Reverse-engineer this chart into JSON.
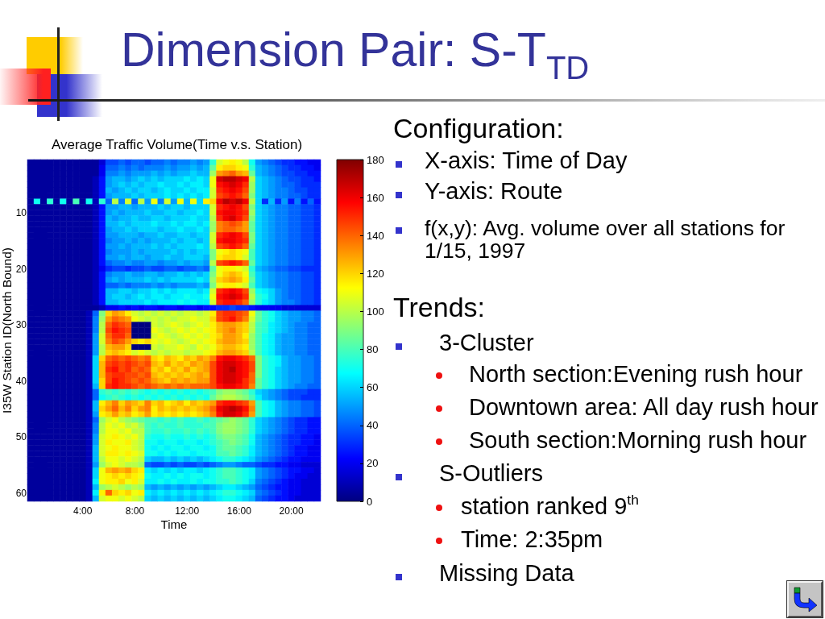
{
  "chart_data": {
    "type": "heatmap",
    "title": "Dimension Pair: S-T$_{TD}$",
    "subtitle": "Average Traffic Volume(Time v.s. Station)",
    "xlabel": "Time",
    "ylabel": "I35W Station ID(North Bound)",
    "categories": [
      null,
      null,
      null,
      null,
      null,
      null,
      null,
      null,
      "4:00",
      null,
      null,
      null,
      null,
      null,
      null,
      null,
      "8:00",
      null,
      null,
      null,
      null,
      null,
      null,
      null,
      "12:00",
      null,
      null,
      null,
      null,
      null,
      null,
      null,
      "16:00",
      null,
      null,
      null,
      null,
      null,
      null,
      null,
      "20:00",
      null,
      null,
      null,
      null
    ],
    "y_categories": [
      null,
      null,
      null,
      null,
      null,
      null,
      null,
      null,
      null,
      "10",
      null,
      null,
      null,
      null,
      null,
      null,
      null,
      null,
      null,
      "20",
      null,
      null,
      null,
      null,
      null,
      null,
      null,
      null,
      null,
      "30",
      null,
      null,
      null,
      null,
      null,
      null,
      null,
      null,
      null,
      "40",
      null,
      null,
      null,
      null,
      null,
      null,
      null,
      null,
      null,
      "50",
      null,
      null,
      null,
      null,
      null,
      null,
      null,
      null,
      null,
      "60",
      null
    ],
    "clim": [
      0,
      180
    ],
    "cticks": [
      0,
      20,
      40,
      60,
      80,
      100,
      120,
      140,
      160,
      180
    ],
    "cells": [
      [
        5,
        5,
        5,
        5,
        5,
        5,
        5,
        5,
        5,
        5,
        5,
        15,
        35,
        35,
        40,
        35,
        40,
        40,
        35,
        40,
        40,
        45,
        40,
        45,
        45,
        50,
        45,
        50,
        75,
        105,
        110,
        115,
        110,
        100,
        70,
        50,
        45,
        40,
        35,
        30,
        30,
        25,
        25,
        20,
        20
      ],
      [
        5,
        5,
        5,
        5,
        5,
        5,
        5,
        5,
        5,
        5,
        5,
        20,
        40,
        40,
        45,
        40,
        45,
        40,
        45,
        45,
        45,
        50,
        45,
        50,
        50,
        55,
        50,
        55,
        85,
        115,
        120,
        120,
        115,
        110,
        75,
        55,
        50,
        45,
        40,
        35,
        30,
        30,
        25,
        25,
        20
      ],
      [
        5,
        5,
        5,
        5,
        5,
        5,
        5,
        5,
        5,
        5,
        5,
        20,
        45,
        45,
        50,
        45,
        50,
        50,
        50,
        55,
        50,
        55,
        50,
        55,
        55,
        60,
        55,
        55,
        95,
        130,
        135,
        140,
        130,
        125,
        85,
        55,
        50,
        45,
        40,
        35,
        35,
        30,
        30,
        25,
        25
      ],
      [
        5,
        5,
        5,
        5,
        5,
        5,
        5,
        5,
        5,
        5,
        10,
        25,
        50,
        55,
        55,
        50,
        55,
        60,
        55,
        60,
        55,
        60,
        60,
        60,
        65,
        60,
        65,
        60,
        110,
        165,
        170,
        170,
        165,
        160,
        100,
        60,
        55,
        50,
        45,
        40,
        35,
        35,
        30,
        30,
        25
      ],
      [
        5,
        5,
        5,
        5,
        5,
        5,
        5,
        5,
        5,
        5,
        10,
        25,
        50,
        55,
        60,
        55,
        60,
        55,
        60,
        60,
        65,
        60,
        60,
        65,
        60,
        65,
        65,
        60,
        110,
        155,
        160,
        165,
        160,
        150,
        95,
        60,
        55,
        50,
        45,
        40,
        40,
        35,
        30,
        30,
        30
      ],
      [
        5,
        5,
        5,
        5,
        5,
        5,
        5,
        5,
        5,
        5,
        10,
        25,
        55,
        50,
        55,
        60,
        55,
        60,
        60,
        55,
        60,
        65,
        60,
        60,
        65,
        60,
        65,
        65,
        105,
        150,
        155,
        160,
        155,
        145,
        95,
        60,
        55,
        50,
        45,
        45,
        40,
        35,
        35,
        30,
        30
      ],
      [
        5,
        5,
        5,
        5,
        5,
        5,
        5,
        5,
        5,
        5,
        10,
        25,
        50,
        55,
        55,
        55,
        60,
        55,
        60,
        60,
        60,
        65,
        60,
        65,
        60,
        65,
        60,
        65,
        105,
        145,
        150,
        155,
        150,
        140,
        90,
        60,
        55,
        50,
        45,
        45,
        40,
        40,
        35,
        30,
        30
      ],
      [
        5,
        70,
        5,
        75,
        5,
        70,
        5,
        80,
        5,
        70,
        10,
        75,
        40,
        100,
        45,
        105,
        40,
        100,
        50,
        110,
        45,
        105,
        50,
        110,
        55,
        110,
        60,
        115,
        120,
        160,
        170,
        165,
        170,
        160,
        100,
        60,
        30,
        55,
        30,
        50,
        25,
        45,
        25,
        40,
        25
      ],
      [
        5,
        5,
        5,
        5,
        5,
        5,
        5,
        5,
        5,
        5,
        10,
        25,
        50,
        50,
        55,
        55,
        50,
        55,
        55,
        55,
        60,
        55,
        60,
        60,
        55,
        60,
        60,
        60,
        105,
        150,
        155,
        160,
        155,
        145,
        90,
        60,
        55,
        50,
        45,
        45,
        40,
        40,
        35,
        35,
        30
      ],
      [
        5,
        5,
        5,
        5,
        5,
        5,
        5,
        5,
        5,
        5,
        10,
        25,
        50,
        55,
        50,
        55,
        55,
        55,
        60,
        55,
        55,
        60,
        60,
        55,
        60,
        60,
        65,
        60,
        105,
        155,
        160,
        160,
        155,
        150,
        95,
        60,
        55,
        50,
        45,
        45,
        40,
        40,
        35,
        35,
        30
      ],
      [
        5,
        5,
        5,
        5,
        5,
        5,
        5,
        5,
        5,
        5,
        10,
        25,
        55,
        50,
        55,
        55,
        60,
        55,
        55,
        60,
        60,
        55,
        60,
        60,
        60,
        65,
        60,
        60,
        100,
        150,
        160,
        165,
        155,
        145,
        90,
        60,
        55,
        50,
        45,
        45,
        40,
        40,
        35,
        35,
        30
      ],
      [
        5,
        5,
        5,
        5,
        5,
        5,
        5,
        5,
        5,
        5,
        10,
        25,
        55,
        55,
        60,
        55,
        60,
        60,
        60,
        65,
        60,
        60,
        65,
        60,
        65,
        65,
        60,
        65,
        95,
        135,
        140,
        145,
        140,
        130,
        85,
        60,
        55,
        50,
        45,
        45,
        40,
        40,
        35,
        35,
        30
      ],
      [
        5,
        5,
        5,
        5,
        5,
        5,
        5,
        5,
        5,
        5,
        10,
        25,
        50,
        55,
        55,
        60,
        55,
        60,
        60,
        60,
        55,
        60,
        60,
        65,
        60,
        60,
        65,
        60,
        95,
        135,
        140,
        140,
        135,
        130,
        85,
        60,
        55,
        50,
        45,
        45,
        40,
        40,
        35,
        35,
        30
      ],
      [
        5,
        5,
        5,
        5,
        5,
        5,
        5,
        5,
        5,
        5,
        10,
        25,
        50,
        50,
        55,
        55,
        55,
        50,
        55,
        55,
        60,
        55,
        55,
        60,
        60,
        55,
        60,
        60,
        105,
        150,
        155,
        160,
        155,
        145,
        90,
        60,
        55,
        50,
        45,
        45,
        40,
        40,
        35,
        35,
        30
      ],
      [
        5,
        5,
        5,
        5,
        5,
        5,
        5,
        5,
        5,
        5,
        10,
        25,
        45,
        50,
        50,
        55,
        50,
        55,
        50,
        55,
        55,
        55,
        60,
        55,
        60,
        60,
        55,
        60,
        105,
        155,
        160,
        160,
        155,
        150,
        90,
        60,
        55,
        50,
        45,
        45,
        40,
        40,
        35,
        35,
        30
      ],
      [
        5,
        5,
        5,
        5,
        5,
        5,
        5,
        5,
        5,
        5,
        10,
        25,
        50,
        50,
        55,
        50,
        55,
        55,
        55,
        60,
        55,
        60,
        55,
        60,
        60,
        60,
        65,
        60,
        100,
        145,
        150,
        155,
        150,
        140,
        85,
        60,
        55,
        50,
        45,
        45,
        40,
        40,
        35,
        35,
        30
      ],
      [
        5,
        5,
        5,
        5,
        5,
        5,
        5,
        5,
        5,
        5,
        10,
        25,
        45,
        50,
        50,
        50,
        55,
        50,
        55,
        55,
        55,
        55,
        60,
        55,
        60,
        55,
        60,
        60,
        90,
        110,
        115,
        120,
        115,
        110,
        80,
        60,
        55,
        50,
        45,
        45,
        40,
        40,
        35,
        35,
        30
      ],
      [
        5,
        5,
        5,
        5,
        5,
        5,
        5,
        5,
        5,
        5,
        10,
        25,
        50,
        50,
        55,
        50,
        55,
        55,
        50,
        55,
        55,
        60,
        55,
        55,
        60,
        60,
        60,
        55,
        90,
        115,
        120,
        120,
        115,
        105,
        80,
        60,
        55,
        50,
        45,
        45,
        40,
        40,
        35,
        35,
        30
      ],
      [
        5,
        5,
        5,
        5,
        5,
        5,
        5,
        5,
        5,
        5,
        10,
        25,
        40,
        45,
        45,
        50,
        45,
        45,
        50,
        50,
        45,
        50,
        50,
        55,
        50,
        55,
        55,
        50,
        100,
        145,
        150,
        155,
        150,
        140,
        85,
        60,
        55,
        50,
        45,
        45,
        40,
        40,
        35,
        35,
        30
      ],
      [
        5,
        5,
        5,
        5,
        5,
        5,
        5,
        5,
        5,
        5,
        10,
        20,
        30,
        35,
        35,
        30,
        35,
        35,
        40,
        35,
        35,
        40,
        40,
        35,
        40,
        40,
        45,
        40,
        85,
        110,
        115,
        115,
        110,
        105,
        75,
        55,
        50,
        45,
        40,
        40,
        35,
        35,
        30,
        30,
        30
      ],
      [
        5,
        5,
        5,
        5,
        5,
        5,
        5,
        5,
        5,
        5,
        10,
        25,
        45,
        50,
        50,
        55,
        50,
        50,
        55,
        55,
        50,
        55,
        55,
        60,
        55,
        60,
        55,
        60,
        90,
        110,
        120,
        125,
        120,
        110,
        80,
        60,
        55,
        50,
        45,
        45,
        40,
        40,
        35,
        35,
        30
      ],
      [
        5,
        5,
        5,
        5,
        5,
        5,
        5,
        5,
        5,
        5,
        10,
        25,
        50,
        55,
        50,
        55,
        55,
        55,
        60,
        55,
        60,
        55,
        60,
        60,
        60,
        60,
        65,
        60,
        95,
        120,
        125,
        130,
        125,
        115,
        85,
        60,
        55,
        50,
        45,
        45,
        40,
        40,
        35,
        35,
        30
      ],
      [
        5,
        5,
        5,
        5,
        5,
        5,
        5,
        5,
        5,
        5,
        10,
        25,
        40,
        40,
        45,
        40,
        45,
        45,
        45,
        50,
        45,
        50,
        45,
        50,
        50,
        50,
        55,
        50,
        90,
        110,
        115,
        115,
        110,
        105,
        80,
        60,
        55,
        50,
        45,
        45,
        40,
        40,
        35,
        35,
        30
      ],
      [
        5,
        5,
        5,
        5,
        5,
        5,
        5,
        5,
        5,
        5,
        10,
        25,
        55,
        55,
        60,
        60,
        55,
        60,
        60,
        65,
        60,
        65,
        60,
        65,
        65,
        65,
        60,
        65,
        105,
        150,
        155,
        160,
        155,
        145,
        95,
        70,
        65,
        60,
        50,
        45,
        40,
        40,
        35,
        35,
        30
      ],
      [
        5,
        5,
        5,
        5,
        5,
        5,
        5,
        5,
        5,
        5,
        10,
        25,
        55,
        60,
        60,
        55,
        60,
        65,
        60,
        65,
        65,
        60,
        65,
        65,
        70,
        65,
        65,
        70,
        110,
        155,
        160,
        165,
        160,
        150,
        100,
        75,
        70,
        60,
        50,
        45,
        40,
        40,
        35,
        35,
        30
      ],
      [
        5,
        5,
        5,
        5,
        5,
        5,
        5,
        5,
        5,
        5,
        10,
        25,
        55,
        55,
        60,
        60,
        60,
        60,
        65,
        60,
        65,
        65,
        65,
        70,
        65,
        70,
        65,
        65,
        105,
        150,
        155,
        155,
        150,
        140,
        95,
        75,
        65,
        60,
        50,
        45,
        45,
        40,
        35,
        35,
        30
      ],
      [
        5,
        5,
        5,
        5,
        5,
        5,
        5,
        5,
        5,
        5,
        5,
        10,
        20,
        20,
        25,
        20,
        25,
        20,
        25,
        25,
        20,
        25,
        25,
        20,
        25,
        25,
        20,
        25,
        25,
        30,
        30,
        35,
        30,
        30,
        25,
        20,
        20,
        20,
        20,
        15,
        15,
        15,
        15,
        15,
        15
      ],
      [
        5,
        5,
        5,
        5,
        5,
        5,
        5,
        5,
        5,
        10,
        40,
        90,
        120,
        130,
        125,
        115,
        105,
        100,
        105,
        100,
        105,
        100,
        105,
        100,
        105,
        105,
        100,
        105,
        115,
        145,
        150,
        150,
        145,
        140,
        110,
        85,
        75,
        70,
        60,
        55,
        50,
        50,
        45,
        45,
        40
      ],
      [
        5,
        5,
        5,
        5,
        5,
        5,
        5,
        5,
        5,
        10,
        45,
        95,
        130,
        140,
        135,
        130,
        110,
        105,
        100,
        105,
        100,
        105,
        100,
        105,
        105,
        110,
        105,
        105,
        120,
        145,
        150,
        155,
        145,
        135,
        105,
        85,
        75,
        70,
        60,
        55,
        50,
        50,
        45,
        45,
        40
      ],
      [
        5,
        5,
        5,
        5,
        5,
        5,
        5,
        5,
        5,
        10,
        45,
        100,
        140,
        150,
        145,
        140,
        0,
        0,
        0,
        105,
        100,
        105,
        110,
        105,
        100,
        105,
        110,
        105,
        115,
        125,
        130,
        130,
        125,
        120,
        100,
        80,
        75,
        65,
        60,
        55,
        50,
        45,
        45,
        40,
        40
      ],
      [
        5,
        5,
        5,
        5,
        5,
        5,
        5,
        5,
        5,
        10,
        45,
        100,
        145,
        155,
        150,
        145,
        0,
        0,
        0,
        110,
        105,
        100,
        105,
        110,
        105,
        110,
        105,
        110,
        115,
        125,
        130,
        135,
        125,
        120,
        100,
        80,
        75,
        65,
        60,
        55,
        50,
        45,
        45,
        40,
        40
      ],
      [
        5,
        5,
        5,
        5,
        5,
        5,
        5,
        5,
        5,
        10,
        50,
        105,
        140,
        150,
        150,
        140,
        0,
        0,
        0,
        105,
        110,
        105,
        100,
        105,
        110,
        105,
        110,
        105,
        115,
        120,
        130,
        130,
        125,
        115,
        95,
        80,
        70,
        65,
        55,
        50,
        50,
        45,
        45,
        40,
        40
      ],
      [
        5,
        5,
        5,
        5,
        5,
        5,
        5,
        5,
        5,
        10,
        50,
        105,
        135,
        145,
        140,
        130,
        120,
        115,
        120,
        110,
        105,
        110,
        105,
        100,
        105,
        110,
        105,
        110,
        115,
        125,
        130,
        130,
        125,
        120,
        95,
        80,
        70,
        65,
        55,
        50,
        50,
        45,
        45,
        40,
        40
      ],
      [
        5,
        5,
        5,
        5,
        5,
        5,
        5,
        5,
        5,
        10,
        50,
        100,
        125,
        130,
        130,
        120,
        0,
        0,
        0,
        105,
        100,
        105,
        105,
        110,
        105,
        100,
        110,
        105,
        110,
        120,
        125,
        125,
        120,
        115,
        95,
        80,
        70,
        65,
        55,
        50,
        50,
        45,
        45,
        40,
        40
      ],
      [
        5,
        5,
        5,
        5,
        5,
        5,
        5,
        5,
        5,
        10,
        50,
        100,
        120,
        125,
        120,
        115,
        105,
        110,
        105,
        100,
        105,
        100,
        105,
        105,
        100,
        105,
        105,
        110,
        115,
        125,
        130,
        130,
        125,
        120,
        100,
        80,
        70,
        65,
        55,
        50,
        50,
        45,
        45,
        40,
        40
      ],
      [
        5,
        5,
        5,
        5,
        5,
        5,
        5,
        5,
        5,
        10,
        60,
        120,
        140,
        145,
        140,
        145,
        140,
        135,
        140,
        120,
        115,
        125,
        120,
        115,
        125,
        120,
        130,
        125,
        135,
        155,
        160,
        160,
        155,
        150,
        140,
        90,
        75,
        70,
        65,
        55,
        50,
        50,
        45,
        45,
        40
      ],
      [
        5,
        5,
        5,
        5,
        5,
        5,
        5,
        5,
        5,
        10,
        60,
        125,
        145,
        150,
        145,
        150,
        145,
        140,
        145,
        125,
        120,
        130,
        120,
        125,
        120,
        130,
        125,
        130,
        145,
        160,
        165,
        165,
        160,
        155,
        145,
        90,
        75,
        70,
        65,
        55,
        50,
        50,
        45,
        45,
        40
      ],
      [
        5,
        5,
        5,
        5,
        5,
        5,
        5,
        5,
        5,
        10,
        60,
        125,
        150,
        155,
        145,
        150,
        140,
        145,
        140,
        120,
        125,
        115,
        125,
        120,
        130,
        120,
        125,
        130,
        145,
        160,
        165,
        170,
        160,
        155,
        145,
        90,
        75,
        70,
        60,
        55,
        50,
        50,
        45,
        45,
        40
      ],
      [
        5,
        5,
        5,
        5,
        5,
        5,
        5,
        5,
        5,
        10,
        60,
        125,
        145,
        150,
        150,
        145,
        145,
        140,
        145,
        125,
        120,
        125,
        120,
        125,
        120,
        125,
        130,
        125,
        145,
        160,
        165,
        165,
        160,
        155,
        140,
        90,
        75,
        70,
        60,
        55,
        50,
        50,
        45,
        45,
        40
      ],
      [
        5,
        5,
        5,
        5,
        5,
        5,
        5,
        5,
        5,
        10,
        60,
        120,
        145,
        155,
        150,
        145,
        140,
        145,
        140,
        130,
        125,
        120,
        130,
        125,
        130,
        125,
        130,
        130,
        145,
        160,
        165,
        165,
        160,
        150,
        140,
        85,
        75,
        70,
        60,
        55,
        50,
        50,
        45,
        45,
        40
      ],
      [
        5,
        5,
        5,
        5,
        5,
        5,
        5,
        5,
        5,
        10,
        55,
        120,
        150,
        155,
        150,
        150,
        145,
        140,
        145,
        140,
        135,
        140,
        135,
        140,
        135,
        140,
        140,
        140,
        145,
        155,
        160,
        160,
        155,
        150,
        135,
        85,
        75,
        70,
        60,
        55,
        50,
        45,
        45,
        40,
        40
      ],
      [
        5,
        5,
        5,
        5,
        5,
        5,
        5,
        5,
        5,
        10,
        40,
        75,
        80,
        75,
        80,
        75,
        80,
        75,
        70,
        75,
        70,
        75,
        70,
        75,
        70,
        75,
        70,
        75,
        80,
        90,
        95,
        95,
        90,
        85,
        75,
        60,
        55,
        50,
        45,
        40,
        35,
        35,
        35,
        30,
        30
      ],
      [
        5,
        5,
        5,
        5,
        5,
        5,
        5,
        5,
        5,
        10,
        40,
        70,
        75,
        80,
        75,
        70,
        75,
        70,
        75,
        70,
        75,
        70,
        75,
        70,
        75,
        70,
        75,
        70,
        85,
        95,
        100,
        100,
        95,
        90,
        80,
        65,
        55,
        50,
        45,
        40,
        35,
        35,
        30,
        30,
        30
      ],
      [
        5,
        5,
        5,
        5,
        5,
        5,
        5,
        5,
        5,
        10,
        55,
        115,
        125,
        135,
        120,
        130,
        125,
        120,
        135,
        120,
        125,
        115,
        120,
        125,
        115,
        125,
        120,
        125,
        130,
        150,
        155,
        155,
        150,
        145,
        130,
        80,
        70,
        65,
        55,
        50,
        45,
        45,
        40,
        40,
        35
      ],
      [
        5,
        5,
        5,
        5,
        5,
        5,
        5,
        5,
        5,
        10,
        55,
        120,
        130,
        140,
        125,
        135,
        120,
        130,
        135,
        115,
        125,
        120,
        125,
        120,
        125,
        120,
        125,
        130,
        140,
        160,
        165,
        170,
        165,
        155,
        135,
        80,
        70,
        65,
        55,
        50,
        45,
        45,
        40,
        40,
        35
      ],
      [
        5,
        5,
        5,
        5,
        5,
        5,
        5,
        5,
        5,
        10,
        50,
        115,
        120,
        130,
        120,
        125,
        115,
        120,
        130,
        115,
        120,
        115,
        120,
        115,
        120,
        115,
        120,
        125,
        135,
        155,
        165,
        165,
        160,
        150,
        130,
        80,
        70,
        65,
        55,
        50,
        45,
        45,
        40,
        40,
        35
      ],
      [
        5,
        5,
        5,
        5,
        5,
        5,
        5,
        5,
        5,
        10,
        40,
        95,
        105,
        110,
        100,
        95,
        90,
        85,
        80,
        80,
        75,
        80,
        75,
        80,
        75,
        75,
        80,
        75,
        80,
        85,
        90,
        95,
        90,
        85,
        75,
        60,
        55,
        50,
        45,
        40,
        35,
        30,
        30,
        25,
        25
      ],
      [
        5,
        5,
        5,
        5,
        5,
        5,
        5,
        5,
        5,
        10,
        45,
        100,
        110,
        105,
        110,
        100,
        105,
        95,
        80,
        75,
        80,
        75,
        75,
        80,
        75,
        75,
        75,
        80,
        80,
        90,
        95,
        95,
        90,
        85,
        75,
        60,
        55,
        50,
        45,
        40,
        35,
        30,
        30,
        25,
        25
      ],
      [
        5,
        5,
        5,
        5,
        5,
        5,
        5,
        5,
        5,
        10,
        45,
        100,
        110,
        110,
        105,
        110,
        100,
        100,
        80,
        75,
        75,
        80,
        75,
        75,
        80,
        75,
        80,
        75,
        80,
        90,
        95,
        95,
        90,
        85,
        75,
        60,
        55,
        50,
        45,
        40,
        35,
        30,
        30,
        25,
        25
      ],
      [
        5,
        5,
        5,
        5,
        5,
        5,
        5,
        5,
        5,
        10,
        50,
        105,
        110,
        115,
        110,
        105,
        110,
        100,
        75,
        70,
        70,
        75,
        70,
        70,
        75,
        70,
        75,
        70,
        75,
        85,
        90,
        90,
        85,
        80,
        70,
        55,
        50,
        45,
        40,
        35,
        30,
        30,
        25,
        25,
        20
      ],
      [
        5,
        5,
        5,
        5,
        5,
        5,
        5,
        5,
        5,
        10,
        50,
        105,
        115,
        110,
        110,
        115,
        105,
        100,
        70,
        70,
        65,
        70,
        70,
        65,
        70,
        70,
        65,
        70,
        75,
        80,
        85,
        90,
        85,
        80,
        70,
        55,
        50,
        45,
        40,
        35,
        30,
        30,
        25,
        25,
        20
      ],
      [
        5,
        5,
        5,
        5,
        5,
        5,
        5,
        5,
        5,
        10,
        55,
        105,
        110,
        115,
        110,
        110,
        105,
        100,
        70,
        65,
        70,
        65,
        70,
        70,
        65,
        70,
        70,
        65,
        70,
        80,
        85,
        85,
        80,
        75,
        65,
        55,
        50,
        45,
        40,
        35,
        30,
        25,
        25,
        20,
        20
      ],
      [
        5,
        5,
        5,
        5,
        5,
        5,
        5,
        5,
        5,
        10,
        55,
        105,
        115,
        115,
        110,
        115,
        110,
        105,
        70,
        70,
        65,
        70,
        65,
        70,
        70,
        65,
        70,
        70,
        70,
        80,
        80,
        85,
        80,
        75,
        65,
        55,
        50,
        45,
        40,
        35,
        30,
        25,
        25,
        20,
        20
      ],
      [
        5,
        5,
        5,
        5,
        5,
        5,
        5,
        5,
        5,
        10,
        55,
        100,
        110,
        110,
        105,
        110,
        105,
        100,
        60,
        55,
        55,
        60,
        55,
        60,
        55,
        60,
        55,
        60,
        65,
        70,
        75,
        75,
        70,
        65,
        60,
        50,
        45,
        40,
        35,
        30,
        25,
        25,
        20,
        20,
        20
      ],
      [
        5,
        5,
        5,
        5,
        5,
        5,
        5,
        5,
        5,
        10,
        50,
        95,
        105,
        110,
        105,
        100,
        100,
        95,
        40,
        35,
        35,
        40,
        35,
        40,
        35,
        35,
        40,
        35,
        40,
        45,
        50,
        50,
        45,
        40,
        40,
        35,
        30,
        30,
        25,
        25,
        20,
        20,
        15,
        15,
        15
      ],
      [
        5,
        5,
        5,
        5,
        5,
        5,
        5,
        5,
        5,
        10,
        60,
        110,
        125,
        130,
        125,
        130,
        120,
        115,
        65,
        60,
        65,
        60,
        65,
        60,
        65,
        65,
        60,
        65,
        70,
        75,
        80,
        80,
        75,
        70,
        65,
        50,
        45,
        40,
        35,
        30,
        25,
        25,
        20,
        20,
        15
      ],
      [
        5,
        5,
        5,
        5,
        5,
        5,
        5,
        5,
        5,
        10,
        60,
        110,
        115,
        120,
        115,
        120,
        115,
        110,
        70,
        65,
        65,
        70,
        65,
        70,
        65,
        70,
        70,
        65,
        70,
        75,
        80,
        80,
        75,
        70,
        65,
        50,
        45,
        40,
        35,
        30,
        25,
        20,
        20,
        15,
        15
      ],
      [
        5,
        5,
        5,
        5,
        5,
        5,
        5,
        5,
        5,
        10,
        65,
        110,
        115,
        115,
        120,
        110,
        115,
        105,
        65,
        65,
        70,
        65,
        70,
        65,
        65,
        70,
        65,
        70,
        70,
        75,
        75,
        80,
        75,
        70,
        60,
        45,
        40,
        35,
        30,
        25,
        20,
        20,
        15,
        15,
        15
      ],
      [
        5,
        5,
        5,
        5,
        5,
        5,
        5,
        5,
        5,
        10,
        55,
        95,
        100,
        105,
        100,
        95,
        100,
        95,
        55,
        50,
        55,
        50,
        55,
        50,
        55,
        50,
        55,
        50,
        55,
        60,
        65,
        65,
        60,
        55,
        50,
        40,
        35,
        30,
        25,
        25,
        20,
        20,
        15,
        15,
        15
      ],
      [
        5,
        5,
        5,
        5,
        5,
        5,
        5,
        5,
        5,
        10,
        65,
        115,
        140,
        120,
        115,
        120,
        110,
        115,
        65,
        60,
        65,
        60,
        65,
        60,
        65,
        60,
        65,
        60,
        65,
        70,
        75,
        75,
        70,
        65,
        60,
        45,
        40,
        35,
        30,
        25,
        20,
        20,
        15,
        15,
        15
      ],
      [
        5,
        5,
        5,
        5,
        5,
        5,
        5,
        5,
        5,
        10,
        55,
        105,
        110,
        110,
        105,
        110,
        105,
        100,
        60,
        55,
        60,
        55,
        60,
        55,
        60,
        55,
        60,
        55,
        60,
        65,
        70,
        70,
        65,
        60,
        55,
        40,
        35,
        30,
        25,
        25,
        20,
        15,
        15,
        15,
        15
      ]
    ],
    "annotations": [
      "Configuration:",
      "X-axis: Time of Day",
      "Y-axis: Route",
      "f(x,y): Avg. volume over all stations for 1/15, 1997",
      "Trends:",
      "3-Cluster",
      "North section:Evening rush hour",
      "Downtown area: All day rush hour",
      "South section:Morning rush hour",
      "S-Outliers",
      "station ranked 9$^{th}$",
      "Time: 2:35pm",
      "Missing Data"
    ]
  }
}
